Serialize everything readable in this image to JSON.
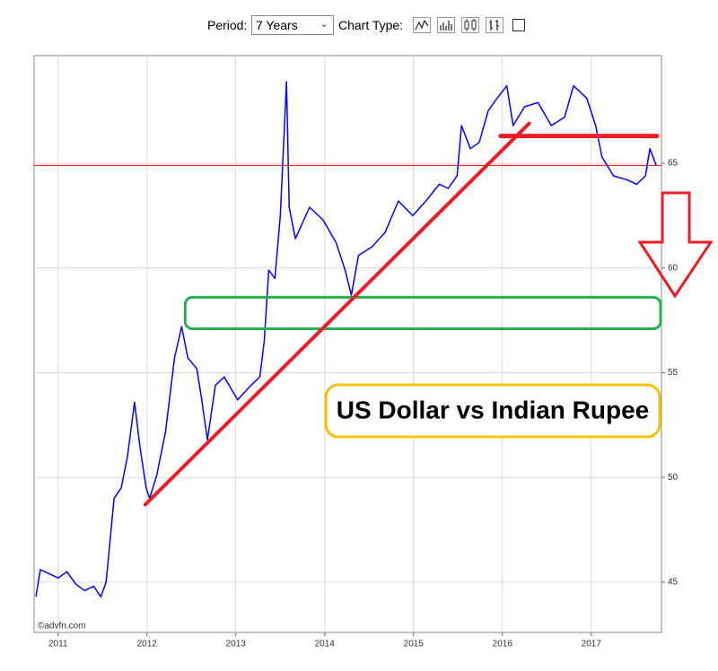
{
  "controls": {
    "period_label": "Period:",
    "period": "7 Years",
    "chart_type_label": "Chart Type:"
  },
  "chart_data": {
    "type": "line",
    "title": "US Dollar vs Indian Rupee",
    "credit": "©advfn.com",
    "x": [
      2010.75,
      2010.8,
      2010.9,
      2011.0,
      2011.1,
      2011.2,
      2011.3,
      2011.4,
      2011.48,
      2011.54,
      2011.63,
      2011.71,
      2011.78,
      2011.86,
      2011.92,
      2011.99,
      2012.03,
      2012.11,
      2012.21,
      2012.31,
      2012.39,
      2012.46,
      2012.56,
      2012.61,
      2012.68,
      2012.77,
      2012.87,
      2013.02,
      2013.17,
      2013.27,
      2013.32,
      2013.37,
      2013.44,
      2013.5,
      2013.57,
      2013.6,
      2013.67,
      2013.83,
      2013.98,
      2014.13,
      2014.23,
      2014.3,
      2014.38,
      2014.53,
      2014.68,
      2014.83,
      2014.99,
      2015.14,
      2015.29,
      2015.39,
      2015.49,
      2015.54,
      2015.64,
      2015.74,
      2015.84,
      2015.94,
      2016.05,
      2016.12,
      2016.25,
      2016.4,
      2016.55,
      2016.7,
      2016.8,
      2016.95,
      2017.05,
      2017.12,
      2017.25,
      2017.41,
      2017.51,
      2017.61,
      2017.66,
      2017.73
    ],
    "series": [
      {
        "color": "#0000ff",
        "values": [
          44.3,
          45.6,
          45.4,
          45.2,
          45.5,
          44.9,
          44.6,
          44.8,
          44.3,
          45.0,
          49.0,
          49.5,
          51.0,
          53.6,
          51.5,
          49.5,
          49.0,
          50.1,
          52.2,
          55.7,
          57.2,
          55.7,
          55.2,
          53.9,
          51.8,
          54.4,
          54.8,
          53.7,
          54.4,
          54.8,
          56.5,
          59.9,
          59.5,
          62.5,
          68.9,
          62.9,
          61.4,
          62.9,
          62.3,
          61.2,
          59.9,
          58.7,
          60.6,
          61.0,
          61.7,
          63.2,
          62.5,
          63.2,
          64.0,
          63.8,
          64.4,
          66.8,
          65.7,
          66.0,
          67.5,
          68.1,
          68.7,
          66.8,
          67.7,
          67.9,
          66.8,
          67.2,
          68.7,
          68.1,
          66.8,
          65.3,
          64.4,
          64.2,
          64.0,
          64.4,
          65.7,
          64.9
        ]
      }
    ],
    "xlim": [
      2010.73,
      2017.79
    ],
    "ylim": [
      42.6,
      70.14
    ],
    "xticks": [
      2011,
      2012,
      2013,
      2014,
      2015,
      2016,
      2017
    ],
    "yticks": [
      45,
      50,
      55,
      60,
      65
    ],
    "grid": true,
    "reference_line": {
      "value": 64.9,
      "color": "#ff0000"
    },
    "trend_line": {
      "x": [
        2011.98,
        2016.3
      ],
      "y": [
        48.7,
        66.9
      ],
      "color": "#ee1c24"
    },
    "resistance_line": {
      "x": [
        2015.98,
        2017.74
      ],
      "y": 66.3,
      "color": "#ee1c24"
    },
    "support_zone": {
      "x": [
        2012.43,
        2017.78
      ],
      "y": [
        57.1,
        58.6
      ],
      "color": "#22b14c"
    }
  }
}
